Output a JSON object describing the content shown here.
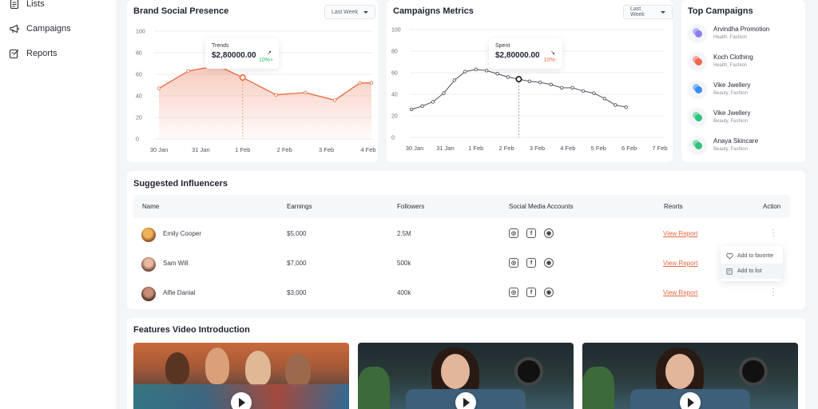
{
  "sidebar": {
    "items": [
      {
        "label": "Lists",
        "icon": "list-icon"
      },
      {
        "label": "Campaigns",
        "icon": "megaphone-icon"
      },
      {
        "label": "Reports",
        "icon": "report-icon"
      }
    ]
  },
  "brand_chart": {
    "title": "Brand Social Presence",
    "dropdown": "Last Week",
    "tooltip": {
      "label": "Trends",
      "value": "$2,80000.00",
      "change": "10%+"
    }
  },
  "campaign_chart": {
    "title": "Campaigns Metrics",
    "dropdown": "Last Week",
    "tooltip": {
      "label": "Spent",
      "value": "$2,80000.00",
      "change": "10%-"
    }
  },
  "top_campaigns": {
    "title": "Top Campaigns",
    "items": [
      {
        "name": "Arvindha Promotion",
        "category": "Health, Fashion",
        "color": "#8b7cf6"
      },
      {
        "name": "Koch Clothing",
        "category": "Health, Fashion",
        "color": "#f2674f"
      },
      {
        "name": "Vike Jwellery",
        "category": "Beauty, Fashion",
        "color": "#3a8cf2"
      },
      {
        "name": "Vike Jwellery",
        "category": "Beauty, Fashion",
        "color": "#2ec47c"
      },
      {
        "name": "Anaya Skincare",
        "category": "Beauty, Fashion",
        "color": "#2ec47c"
      }
    ]
  },
  "influencers": {
    "title": "Suggested Influencers",
    "columns": [
      "Name",
      "Earnings",
      "Followers",
      "Social Media Accounts",
      "Reorts",
      "Action"
    ],
    "rows": [
      {
        "name": "Emily Cooper",
        "earnings": "$5,000",
        "followers": "2.5M",
        "report": "View Report"
      },
      {
        "name": "Sam Will",
        "earnings": "$7,000",
        "followers": "500k",
        "report": "View Report"
      },
      {
        "name": "Alfie Danial",
        "earnings": "$3,000",
        "followers": "400k",
        "report": "View Report"
      }
    ],
    "action_menu": [
      "Add to favorite",
      "Add to list"
    ]
  },
  "videos": {
    "title": "Features Video Introduction"
  },
  "chart_data": [
    {
      "type": "area",
      "title": "Brand Social Presence",
      "categories": [
        "30 Jan",
        "31 Jan",
        "1 Feb",
        "2 Feb",
        "3 Feb",
        "4 Feb"
      ],
      "yticks": [
        "100",
        "80",
        "60",
        "40",
        "20",
        "0"
      ],
      "ylim": [
        0,
        100
      ],
      "x": [
        0,
        0.7,
        1.4,
        2.0,
        2.8,
        3.5,
        4.2,
        4.8,
        5.3
      ],
      "values": [
        47,
        63,
        68,
        57,
        41,
        43,
        36,
        52,
        52
      ],
      "highlight_index": 3,
      "color": "#e8683f"
    },
    {
      "type": "line",
      "title": "Campaigns Metrics",
      "categories": [
        "30 Jan",
        "31 Jan",
        "1 Feb",
        "2 Feb",
        "3 Feb",
        "4 Feb",
        "5 Feb",
        "6 Feb",
        "7 Feb"
      ],
      "yticks": [
        "100",
        "80",
        "60",
        "40",
        "20",
        "0"
      ],
      "ylim": [
        0,
        100
      ],
      "x": [
        -0.1,
        0.25,
        0.6,
        0.95,
        1.3,
        1.65,
        2.0,
        2.35,
        2.7,
        3.05,
        3.4,
        3.75,
        4.1,
        4.45,
        4.8,
        5.15,
        5.5,
        5.85,
        6.2,
        6.55,
        6.9
      ],
      "values": [
        26,
        29,
        33,
        41,
        53,
        61,
        63,
        62,
        59,
        56,
        54,
        52,
        51,
        49,
        46,
        46,
        43,
        41,
        36,
        30,
        28
      ],
      "extra": [
        26
      ],
      "highlight_index": 10,
      "color": "#3a3e48"
    }
  ]
}
